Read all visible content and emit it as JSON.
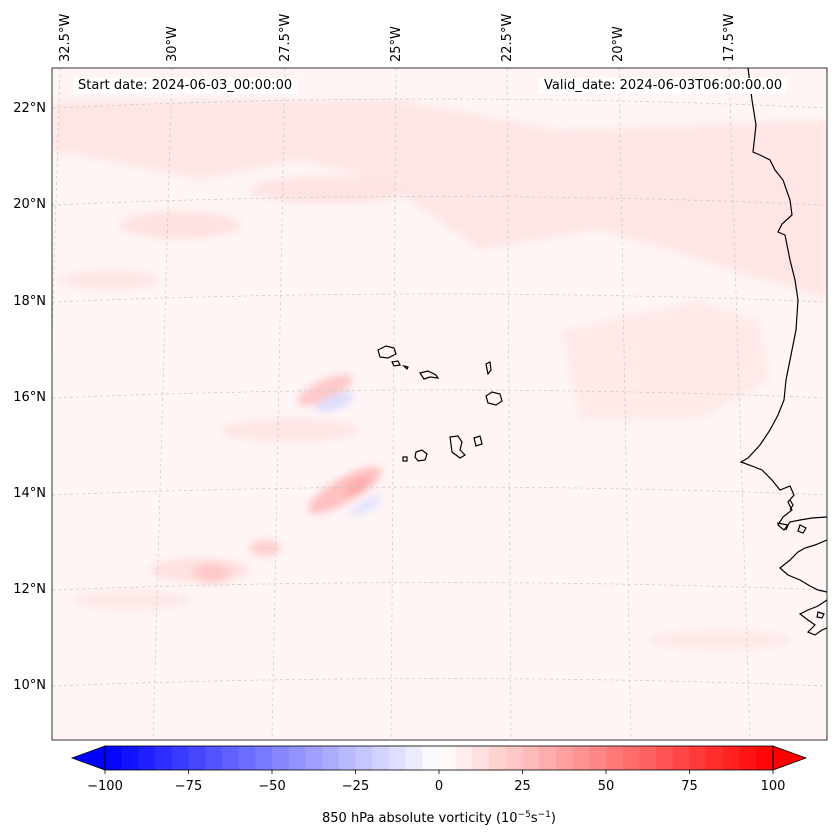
{
  "map": {
    "projection": "conic (Lambert-like)",
    "start_date_label": "Start date: 2024-06-03_00:00:00",
    "valid_date_label": "Valid_date: 2024-06-03T06:00:00.00",
    "lon_tick_labels": [
      "32.5°W",
      "30°W",
      "27.5°W",
      "25°W",
      "22.5°W",
      "20°W",
      "17.5°W"
    ],
    "lat_tick_labels": [
      "22°N",
      "20°N",
      "18°N",
      "16°N",
      "14°N",
      "12°N",
      "10°N"
    ],
    "lon_extent_deg": [
      -33,
      -16
    ],
    "lat_extent_deg": [
      9,
      23
    ],
    "gridlines": true,
    "colors": {
      "background_field": "#fff5f5",
      "coastline": "#000000",
      "gridline": "#c8c8c8",
      "positive_max": "#ff0000",
      "negative_max": "#0000ff"
    },
    "features": [
      "cape-verde-islands",
      "west-african-coastline"
    ]
  },
  "colorbar": {
    "label_text": "850 hPa absolute vorticity (10",
    "label_exp1": "−5",
    "label_mid": "s",
    "label_exp2": "−1",
    "label_close": ")",
    "vmin": -100,
    "vmax": 100,
    "ticks": [
      -100,
      -75,
      -50,
      -25,
      0,
      25,
      50,
      75,
      100
    ],
    "tick_labels": [
      "−100",
      "−75",
      "−50",
      "−25",
      "0",
      "25",
      "50",
      "75",
      "100"
    ],
    "levels": 40,
    "extend": "both",
    "colormap": "bwr"
  }
}
